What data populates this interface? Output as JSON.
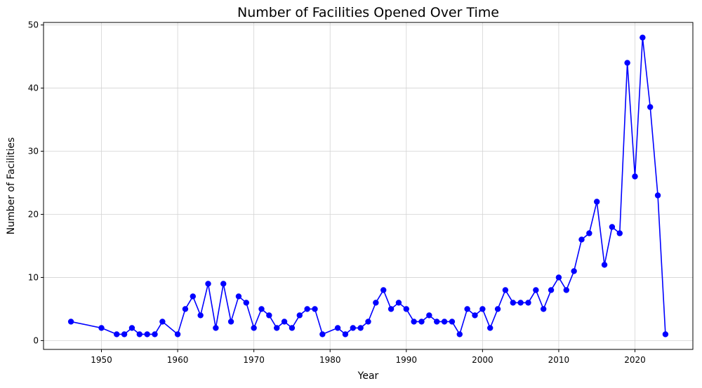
{
  "chart_data": {
    "type": "line",
    "title": "Number of Facilities Opened Over Time",
    "xlabel": "Year",
    "ylabel": "Number of Facilities",
    "xlim": [
      1942.4,
      2027.6
    ],
    "ylim": [
      -1.4,
      50.4
    ],
    "xticks": [
      1950,
      1960,
      1970,
      1980,
      1990,
      2000,
      2010,
      2020
    ],
    "yticks": [
      0,
      10,
      20,
      30,
      40,
      50
    ],
    "grid": true,
    "legend": "none",
    "colors": {
      "line": "#0000ff",
      "marker": "#0000ff",
      "grid": "#d3d3d3",
      "axis": "#000000"
    },
    "series": [
      {
        "x": [
          1946,
          1950,
          1952,
          1953,
          1954,
          1955,
          1956,
          1957,
          1958,
          1960,
          1961,
          1962,
          1963,
          1964,
          1965,
          1966,
          1967,
          1968,
          1969,
          1970,
          1971,
          1972,
          1973,
          1974,
          1975,
          1976,
          1977,
          1978,
          1979,
          1981,
          1982,
          1983,
          1984,
          1985,
          1986,
          1987,
          1988,
          1989,
          1990,
          1991,
          1992,
          1993,
          1994,
          1995,
          1996,
          1997,
          1998,
          1999,
          2000,
          2001,
          2002,
          2003,
          2004,
          2005,
          2006,
          2007,
          2008,
          2009,
          2010,
          2011,
          2012,
          2013,
          2014,
          2015,
          2016,
          2017,
          2018,
          2019,
          2020,
          2021,
          2022,
          2023,
          2024
        ],
        "y": [
          3,
          2,
          1,
          1,
          2,
          1,
          1,
          1,
          3,
          1,
          5,
          7,
          4,
          9,
          2,
          9,
          3,
          7,
          6,
          2,
          5,
          4,
          2,
          3,
          2,
          4,
          5,
          5,
          1,
          2,
          1,
          2,
          2,
          3,
          6,
          8,
          5,
          6,
          5,
          3,
          3,
          4,
          3,
          3,
          3,
          1,
          5,
          4,
          5,
          2,
          5,
          8,
          6,
          6,
          6,
          8,
          5,
          8,
          10,
          8,
          11,
          16,
          17,
          22,
          12,
          18,
          17,
          44,
          26,
          48,
          37,
          23,
          1
        ]
      }
    ]
  }
}
